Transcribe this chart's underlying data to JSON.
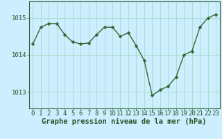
{
  "x": [
    0,
    1,
    2,
    3,
    4,
    5,
    6,
    7,
    8,
    9,
    10,
    11,
    12,
    13,
    14,
    15,
    16,
    17,
    18,
    19,
    20,
    21,
    22,
    23
  ],
  "y": [
    1014.3,
    1014.75,
    1014.85,
    1014.85,
    1014.55,
    1014.35,
    1014.3,
    1014.32,
    1014.55,
    1014.75,
    1014.75,
    1014.5,
    1014.6,
    1014.25,
    1013.85,
    1012.9,
    1013.05,
    1013.15,
    1013.4,
    1014.0,
    1014.1,
    1014.75,
    1015.0,
    1015.1
  ],
  "line_color": "#336633",
  "marker": "D",
  "marker_size": 2.5,
  "bg_color": "#cceeff",
  "grid_color": "#aaddcc",
  "label_color": "#225522",
  "xlabel": "Graphe pression niveau de la mer (hPa)",
  "xlabel_fontsize": 7.5,
  "yticks": [
    1013,
    1014,
    1015
  ],
  "xtick_labels": [
    "0",
    "1",
    "2",
    "3",
    "4",
    "5",
    "6",
    "7",
    "8",
    "9",
    "10",
    "11",
    "12",
    "13",
    "14",
    "15",
    "16",
    "17",
    "18",
    "19",
    "20",
    "21",
    "22",
    "23"
  ],
  "ylim": [
    1012.55,
    1015.45
  ],
  "xlim": [
    -0.5,
    23.5
  ],
  "tick_fontsize": 6.5,
  "border_color": "#336633",
  "line_width": 1.0,
  "fig_width": 3.2,
  "fig_height": 2.0,
  "dpi": 100
}
